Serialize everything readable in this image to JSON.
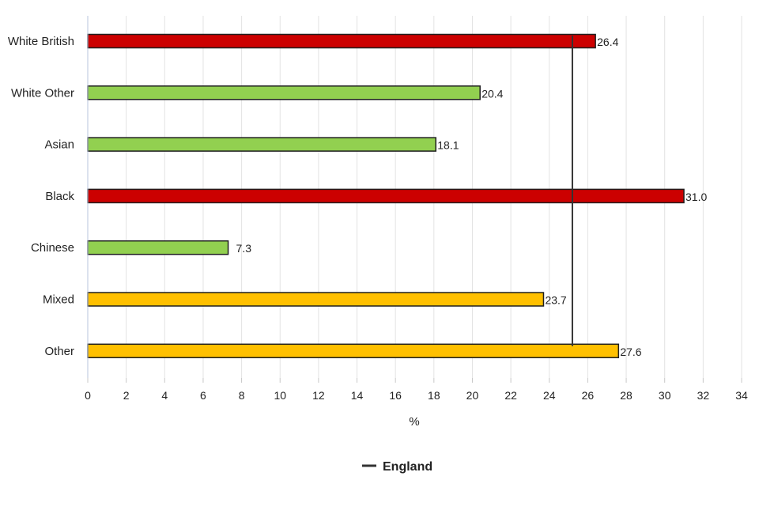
{
  "chart_data": {
    "type": "bar",
    "orientation": "horizontal",
    "categories": [
      "White British",
      "White Other",
      "Asian",
      "Black",
      "Chinese",
      "Mixed",
      "Other"
    ],
    "values": [
      26.4,
      20.4,
      18.1,
      31.0,
      7.3,
      23.7,
      27.6
    ],
    "value_labels": [
      "26.4",
      "20.4",
      "18.1",
      "31.0",
      "7.3",
      "23.7",
      "27.6"
    ],
    "bar_colors": [
      "#cc0000",
      "#92d050",
      "#92d050",
      "#cc0000",
      "#92d050",
      "#ffc000",
      "#ffc000"
    ],
    "xlabel": "%",
    "xlim": [
      0,
      34
    ],
    "xticks": [
      0,
      2,
      4,
      6,
      8,
      10,
      12,
      14,
      16,
      18,
      20,
      22,
      24,
      26,
      28,
      30,
      32,
      34
    ],
    "grid": true,
    "reference_line": {
      "name": "England",
      "value": 25.2,
      "color": "#333333"
    },
    "legend": {
      "position": "bottom-center",
      "entries": [
        "England"
      ]
    }
  }
}
